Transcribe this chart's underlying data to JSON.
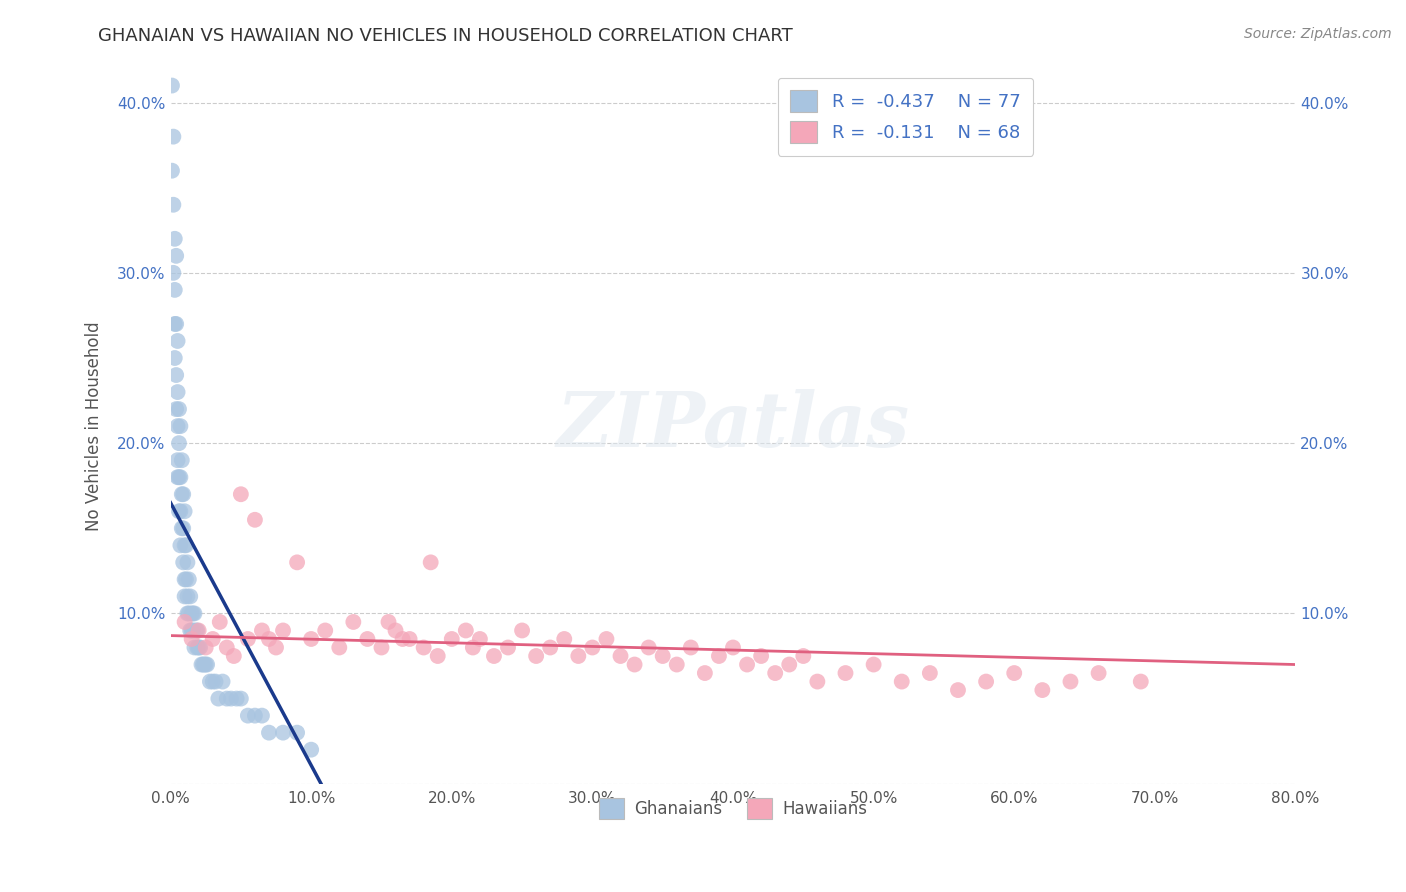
{
  "title": "GHANAIAN VS HAWAIIAN NO VEHICLES IN HOUSEHOLD CORRELATION CHART",
  "source": "Source: ZipAtlas.com",
  "ylabel": "No Vehicles in Household",
  "watermark": "ZIPatlas",
  "xlim": [
    0.0,
    0.8
  ],
  "ylim": [
    0.0,
    0.42
  ],
  "xticks": [
    0.0,
    0.1,
    0.2,
    0.3,
    0.4,
    0.5,
    0.6,
    0.7,
    0.8
  ],
  "xticklabels": [
    "0.0%",
    "10.0%",
    "20.0%",
    "30.0%",
    "40.0%",
    "50.0%",
    "60.0%",
    "70.0%",
    "80.0%"
  ],
  "yticks": [
    0.0,
    0.1,
    0.2,
    0.3,
    0.4
  ],
  "yticklabels": [
    "",
    "10.0%",
    "20.0%",
    "30.0%",
    "40.0%"
  ],
  "ghanaian_color": "#a8c4e0",
  "hawaiian_color": "#f4a7b9",
  "ghanaian_line_color": "#1a3a8c",
  "hawaiian_line_color": "#e06080",
  "ghanaian_R": -0.437,
  "ghanaian_N": 77,
  "hawaiian_R": -0.131,
  "hawaiian_N": 68,
  "ghanaian_x": [
    0.001,
    0.001,
    0.002,
    0.002,
    0.002,
    0.003,
    0.003,
    0.003,
    0.003,
    0.004,
    0.004,
    0.004,
    0.004,
    0.005,
    0.005,
    0.005,
    0.005,
    0.005,
    0.006,
    0.006,
    0.006,
    0.006,
    0.007,
    0.007,
    0.007,
    0.007,
    0.008,
    0.008,
    0.008,
    0.009,
    0.009,
    0.009,
    0.01,
    0.01,
    0.01,
    0.01,
    0.011,
    0.011,
    0.012,
    0.012,
    0.012,
    0.013,
    0.013,
    0.014,
    0.014,
    0.015,
    0.015,
    0.016,
    0.016,
    0.017,
    0.017,
    0.018,
    0.019,
    0.019,
    0.02,
    0.021,
    0.022,
    0.023,
    0.024,
    0.025,
    0.026,
    0.028,
    0.03,
    0.032,
    0.034,
    0.037,
    0.04,
    0.043,
    0.047,
    0.05,
    0.055,
    0.06,
    0.065,
    0.07,
    0.08,
    0.09,
    0.1
  ],
  "ghanaian_y": [
    0.41,
    0.36,
    0.38,
    0.34,
    0.3,
    0.32,
    0.29,
    0.27,
    0.25,
    0.31,
    0.27,
    0.24,
    0.22,
    0.26,
    0.23,
    0.21,
    0.19,
    0.18,
    0.22,
    0.2,
    0.18,
    0.16,
    0.21,
    0.18,
    0.16,
    0.14,
    0.19,
    0.17,
    0.15,
    0.17,
    0.15,
    0.13,
    0.16,
    0.14,
    0.12,
    0.11,
    0.14,
    0.12,
    0.13,
    0.11,
    0.1,
    0.12,
    0.1,
    0.11,
    0.09,
    0.1,
    0.09,
    0.1,
    0.09,
    0.1,
    0.08,
    0.09,
    0.09,
    0.08,
    0.08,
    0.08,
    0.07,
    0.07,
    0.07,
    0.07,
    0.07,
    0.06,
    0.06,
    0.06,
    0.05,
    0.06,
    0.05,
    0.05,
    0.05,
    0.05,
    0.04,
    0.04,
    0.04,
    0.03,
    0.03,
    0.03,
    0.02
  ],
  "hawaiian_x": [
    0.01,
    0.015,
    0.02,
    0.025,
    0.03,
    0.035,
    0.04,
    0.045,
    0.05,
    0.055,
    0.06,
    0.065,
    0.07,
    0.075,
    0.08,
    0.09,
    0.1,
    0.11,
    0.12,
    0.13,
    0.14,
    0.15,
    0.155,
    0.16,
    0.165,
    0.17,
    0.18,
    0.185,
    0.19,
    0.2,
    0.21,
    0.215,
    0.22,
    0.23,
    0.24,
    0.25,
    0.26,
    0.27,
    0.28,
    0.29,
    0.3,
    0.31,
    0.32,
    0.33,
    0.34,
    0.35,
    0.36,
    0.37,
    0.38,
    0.39,
    0.4,
    0.41,
    0.42,
    0.43,
    0.44,
    0.45,
    0.46,
    0.48,
    0.5,
    0.52,
    0.54,
    0.56,
    0.58,
    0.6,
    0.62,
    0.64,
    0.66,
    0.69
  ],
  "hawaiian_y": [
    0.095,
    0.085,
    0.09,
    0.08,
    0.085,
    0.095,
    0.08,
    0.075,
    0.17,
    0.085,
    0.155,
    0.09,
    0.085,
    0.08,
    0.09,
    0.13,
    0.085,
    0.09,
    0.08,
    0.095,
    0.085,
    0.08,
    0.095,
    0.09,
    0.085,
    0.085,
    0.08,
    0.13,
    0.075,
    0.085,
    0.09,
    0.08,
    0.085,
    0.075,
    0.08,
    0.09,
    0.075,
    0.08,
    0.085,
    0.075,
    0.08,
    0.085,
    0.075,
    0.07,
    0.08,
    0.075,
    0.07,
    0.08,
    0.065,
    0.075,
    0.08,
    0.07,
    0.075,
    0.065,
    0.07,
    0.075,
    0.06,
    0.065,
    0.07,
    0.06,
    0.065,
    0.055,
    0.06,
    0.065,
    0.055,
    0.06,
    0.065,
    0.06
  ]
}
